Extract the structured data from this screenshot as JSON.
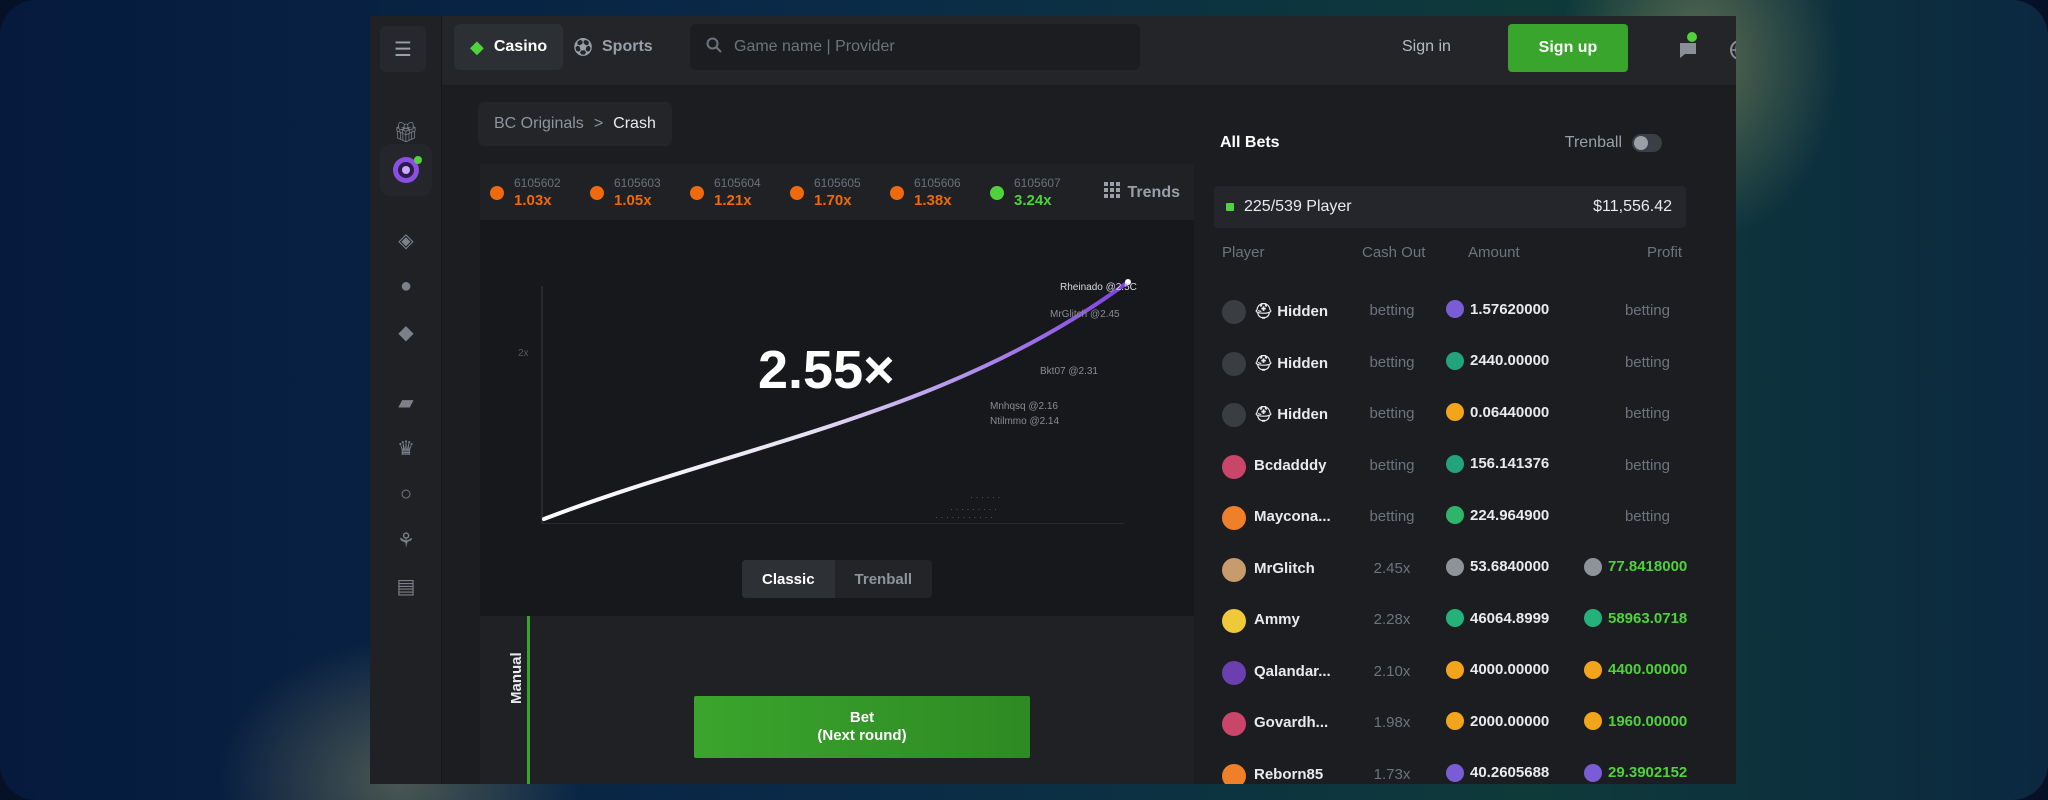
{
  "header": {
    "tabs": [
      {
        "label": "Casino",
        "icon": "casino-diamond-icon"
      },
      {
        "label": "Sports",
        "icon": "football-icon"
      }
    ],
    "search_placeholder": "Game name | Provider",
    "signin_label": "Sign in",
    "signup_label": "Sign up"
  },
  "sidebar": {
    "icons": [
      "menu-icon",
      "gift-icon",
      "originals-target-icon",
      "casino-icon",
      "sports-ball-icon",
      "ticket-icon",
      "promo-tag-icon",
      "vip-crown-icon",
      "support-icon",
      "partner-icon",
      "chat-icon"
    ]
  },
  "breadcrumb": {
    "parent": "BC Originals",
    "separator": ">",
    "current": "Crash"
  },
  "game": {
    "history": [
      {
        "id": "6105602",
        "value": "1.03x",
        "color": "#ee6a0d"
      },
      {
        "id": "6105603",
        "value": "1.05x",
        "color": "#ee6a0d"
      },
      {
        "id": "6105604",
        "value": "1.21x",
        "color": "#ee6a0d"
      },
      {
        "id": "6105605",
        "value": "1.70x",
        "color": "#ee6a0d"
      },
      {
        "id": "6105606",
        "value": "1.38x",
        "color": "#ee6a0d"
      },
      {
        "id": "6105607",
        "value": "3.24x",
        "color": "#4fd23b"
      }
    ],
    "trends_label": "Trends",
    "multiplier": "2.55×",
    "y_tick": "2x",
    "x_ticks": [
      "0",
      "2",
      "4",
      "6",
      "8",
      "10",
      "12",
      "14"
    ],
    "cashout_labels": [
      "Rheinado @2.5C",
      "MrGlitch @2.45",
      "Bkt07 @2.31",
      "Mnhqsq @2.16",
      "Ntilmmo @2.14"
    ],
    "modes": [
      "Classic",
      "Trenball"
    ],
    "bet_tab": "Manual",
    "bet_button": {
      "line1": "Bet",
      "line2": "(Next round)"
    }
  },
  "bets": {
    "title": "All Bets",
    "trenball_label": "Trenball",
    "players_count": "225/539 Player",
    "total": "$11,556.42",
    "columns": [
      "Player",
      "Cash Out",
      "Amount",
      "Profit"
    ],
    "rows": [
      {
        "name": "Hidden",
        "hidden": true,
        "cashout": "betting",
        "amount": "1.57620000",
        "coin": "#7a5cd6",
        "profit": "betting",
        "win": false,
        "avatar": "#3a3d42"
      },
      {
        "name": "Hidden",
        "hidden": true,
        "cashout": "betting",
        "amount": "2440.00000",
        "coin": "#22a37a",
        "profit": "betting",
        "win": false,
        "avatar": "#3a3d42"
      },
      {
        "name": "Hidden",
        "hidden": true,
        "cashout": "betting",
        "amount": "0.06440000",
        "coin": "#f2a51a",
        "profit": "betting",
        "win": false,
        "avatar": "#3a3d42"
      },
      {
        "name": "Bcdadddy",
        "hidden": false,
        "cashout": "betting",
        "amount": "156.141376",
        "coin": "#22a37a",
        "profit": "betting",
        "win": false,
        "avatar": "#c9456a"
      },
      {
        "name": "Maycona...",
        "hidden": false,
        "cashout": "betting",
        "amount": "224.964900",
        "coin": "#2fb56a",
        "profit": "betting",
        "win": false,
        "avatar": "#f07f2a"
      },
      {
        "name": "MrGlitch",
        "hidden": false,
        "cashout": "2.45x",
        "amount": "53.6840000",
        "coin": "#8e939a",
        "profit": "77.8418000",
        "win": true,
        "avatar": "#c69b6d"
      },
      {
        "name": "Ammy",
        "hidden": false,
        "cashout": "2.28x",
        "amount": "46064.8999",
        "coin": "#24b27a",
        "profit": "58963.0718",
        "win": true,
        "avatar": "#f0c93a"
      },
      {
        "name": "Qalandar...",
        "hidden": false,
        "cashout": "2.10x",
        "amount": "4000.00000",
        "coin": "#f2a51a",
        "profit": "4400.00000",
        "win": true,
        "avatar": "#6b3fb0"
      },
      {
        "name": "Govardh...",
        "hidden": false,
        "cashout": "1.98x",
        "amount": "2000.00000",
        "coin": "#f2a51a",
        "profit": "1960.00000",
        "win": true,
        "avatar": "#c9456a"
      },
      {
        "name": "Reborn85",
        "hidden": false,
        "cashout": "1.73x",
        "amount": "40.2605688",
        "coin": "#7a5cd6",
        "profit": "29.3902152",
        "win": true,
        "avatar": "#f07f2a"
      }
    ]
  },
  "colors": {
    "accent": "#3aa52c",
    "win": "#4fd23b",
    "loss_badge": "#ee6a0d",
    "curve_start": "#ffffff",
    "curve_end": "#7b3fe0"
  }
}
